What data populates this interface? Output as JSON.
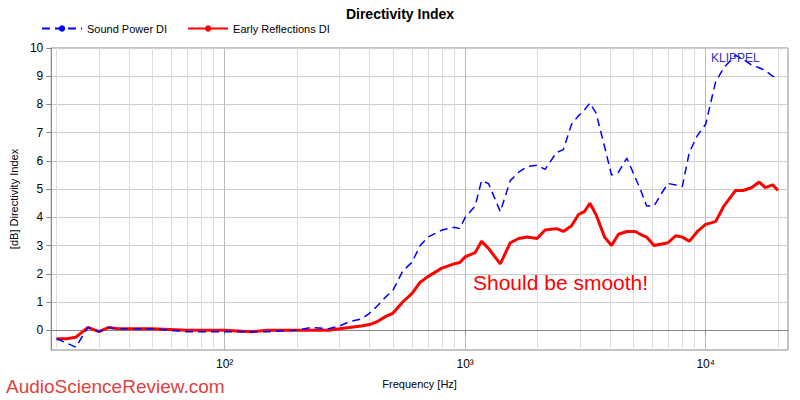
{
  "chart_data": {
    "type": "line",
    "title": "Directivity Index",
    "x_label": "Frequency [Hz]",
    "y_label": "[dB] Directivity Index",
    "log": "x",
    "grid": true,
    "legend": "top-left",
    "xlim": [
      19,
      22000
    ],
    "xticks": [
      {
        "value": 100,
        "label": "10²"
      },
      {
        "value": 1000,
        "label": "10³"
      },
      {
        "value": 10000,
        "label": "10⁴"
      }
    ],
    "ylim": [
      -0.7,
      10
    ],
    "yticks": [
      0,
      1,
      2,
      3,
      4,
      5,
      6,
      7,
      8,
      9,
      10
    ],
    "x": [
      20,
      22,
      24,
      27,
      30,
      33,
      36,
      50,
      70,
      100,
      130,
      150,
      200,
      230,
      270,
      300,
      330,
      370,
      400,
      430,
      470,
      500,
      550,
      600,
      650,
      700,
      800,
      900,
      950,
      1000,
      1100,
      1170,
      1250,
      1400,
      1540,
      1670,
      1810,
      1990,
      2150,
      2400,
      2560,
      2770,
      2960,
      3130,
      3300,
      3500,
      3800,
      4060,
      4340,
      4700,
      5100,
      5350,
      5680,
      6100,
      6500,
      6970,
      7520,
      8000,
      8550,
      9240,
      10000,
      11000,
      11900,
      13300,
      14300,
      15500,
      16700,
      17700,
      19000,
      20000
    ],
    "series": [
      {
        "name": "Sound Power DI",
        "color": "#0000ff",
        "line_style": "dashed",
        "values": [
          -0.3,
          -0.45,
          -0.6,
          0.1,
          -0.05,
          0.1,
          0.05,
          0.05,
          -0.05,
          -0.05,
          -0.05,
          -0.05,
          0.0,
          0.1,
          0.05,
          0.15,
          0.3,
          0.4,
          0.6,
          0.85,
          1.2,
          1.4,
          2.1,
          2.4,
          3.0,
          3.3,
          3.55,
          3.65,
          3.6,
          4.0,
          4.4,
          5.3,
          5.2,
          4.2,
          5.3,
          5.6,
          5.8,
          5.85,
          5.7,
          6.3,
          6.4,
          7.3,
          7.6,
          7.8,
          8.05,
          7.7,
          6.5,
          5.5,
          5.6,
          6.1,
          5.4,
          5.0,
          4.4,
          4.4,
          4.8,
          5.2,
          5.15,
          5.1,
          6.3,
          6.9,
          7.3,
          8.8,
          9.3,
          9.75,
          9.6,
          9.4,
          9.3,
          9.2,
          9.0,
          8.95
        ]
      },
      {
        "name": "Early Reflections DI",
        "color": "#ff0000",
        "line_style": "solid",
        "values": [
          -0.3,
          -0.3,
          -0.25,
          0.1,
          -0.05,
          0.1,
          0.05,
          0.05,
          0.0,
          0.0,
          -0.05,
          0.0,
          0.0,
          0.0,
          0.0,
          0.05,
          0.1,
          0.15,
          0.2,
          0.3,
          0.5,
          0.6,
          1.0,
          1.3,
          1.7,
          1.9,
          2.2,
          2.35,
          2.4,
          2.6,
          2.75,
          3.15,
          2.9,
          2.35,
          3.1,
          3.25,
          3.3,
          3.25,
          3.55,
          3.6,
          3.5,
          3.7,
          4.1,
          4.2,
          4.5,
          4.1,
          3.3,
          3.0,
          3.4,
          3.5,
          3.5,
          3.4,
          3.3,
          3.0,
          3.05,
          3.1,
          3.35,
          3.3,
          3.15,
          3.5,
          3.75,
          3.85,
          4.4,
          4.95,
          4.95,
          5.05,
          5.25,
          5.05,
          5.15,
          4.95
        ]
      }
    ],
    "annotations": [
      {
        "text": "Should be smooth!",
        "color": "#ff0000"
      },
      {
        "text": "KLIPPEL",
        "color": "#3333cc"
      },
      {
        "text": "AudioScienceReview.com",
        "color": "#e04040"
      }
    ]
  }
}
